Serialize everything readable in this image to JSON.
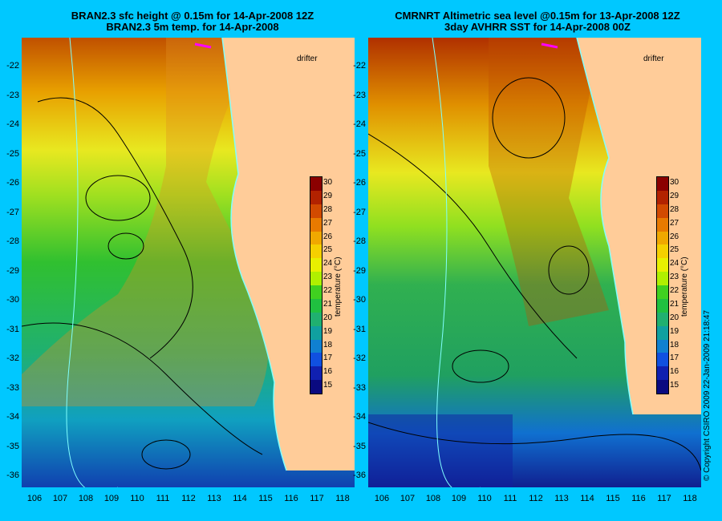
{
  "left_panel": {
    "title_line1": "BRAN2.3 sfc height @ 0.15m for 14-Apr-2008 12Z",
    "title_line2": "BRAN2.3 5m temp. for 14-Apr-2008",
    "drifter_label": "drifter"
  },
  "right_panel": {
    "title_line1": "CMRNRT Altimetric sea level  @0.15m  for 13-Apr-2008 12Z",
    "title_line2": "3day AVHRR SST for 14-Apr-2008 00Z",
    "drifter_label": "drifter"
  },
  "axes": {
    "lat_ticks": [
      "-22",
      "-23",
      "-24",
      "-25",
      "-26",
      "-27",
      "-28",
      "-29",
      "-30",
      "-31",
      "-32",
      "-33",
      "-34",
      "-35",
      "-36"
    ],
    "lon_ticks": [
      "106",
      "107",
      "108",
      "109",
      "110",
      "111",
      "112",
      "113",
      "114",
      "115",
      "116",
      "117",
      "118"
    ]
  },
  "colorbar": {
    "title": "temperature (°C)",
    "labels": [
      "30",
      "29",
      "28",
      "27",
      "26",
      "25",
      "24",
      "23",
      "22",
      "21",
      "20",
      "19",
      "18",
      "17",
      "16",
      "15"
    ],
    "colors": [
      "#8b0000",
      "#b22200",
      "#d24a00",
      "#e87a00",
      "#f0a800",
      "#f5d000",
      "#e8f000",
      "#b0f000",
      "#40d020",
      "#20c040",
      "#20b070",
      "#10a0a0",
      "#1080d0",
      "#1050e0",
      "#1020b0",
      "#0a0a80"
    ]
  },
  "copyright": "© Copyright CSIRO 2009   22-Jan-2009 21:18:47",
  "colors": {
    "background": "#00c8ff",
    "land": "#ffcc99",
    "coast": "#80ffff",
    "drifter": "#ff00ff"
  }
}
